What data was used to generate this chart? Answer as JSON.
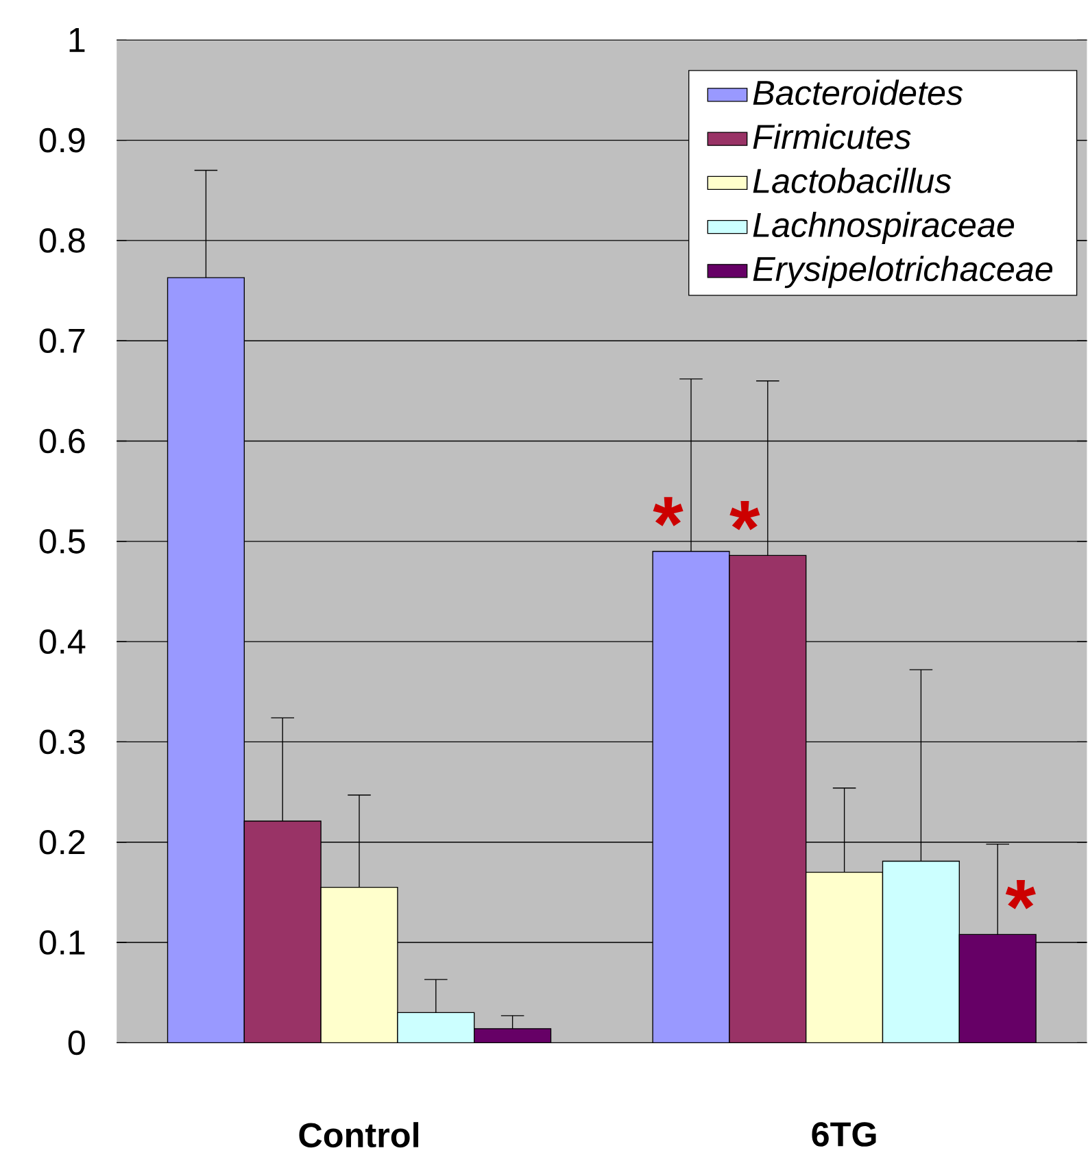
{
  "chart_data": {
    "type": "bar",
    "categories": [
      "Control",
      "6TG"
    ],
    "series": [
      {
        "name": "Bacteroidetes",
        "color": "#9999ff",
        "values": [
          0.763,
          0.49
        ],
        "errors": [
          [
            0.763,
            0.87
          ],
          [
            0.49,
            0.662
          ]
        ]
      },
      {
        "name": "Firmicutes",
        "color": "#993366",
        "values": [
          0.221,
          0.486
        ],
        "errors": [
          [
            0.221,
            0.324
          ],
          [
            0.486,
            0.66
          ]
        ]
      },
      {
        "name": "Lactobacillus",
        "color": "#ffffcc",
        "values": [
          0.155,
          0.17
        ],
        "errors": [
          [
            0.155,
            0.247
          ],
          [
            0.17,
            0.254
          ]
        ]
      },
      {
        "name": "Lachnospiraceae",
        "color": "#ccffff",
        "values": [
          0.03,
          0.181
        ],
        "errors": [
          [
            0.03,
            0.063
          ],
          [
            0.181,
            0.372
          ]
        ]
      },
      {
        "name": "Erysipelotrichaceae",
        "color": "#660066",
        "values": [
          0.014,
          0.108
        ],
        "errors": [
          [
            0.014,
            0.027
          ],
          [
            0.108,
            0.198
          ]
        ]
      }
    ],
    "ylim": [
      0,
      1
    ],
    "yticks": [
      0,
      0.1,
      0.2,
      0.3,
      0.4,
      0.5,
      0.6,
      0.7,
      0.8,
      0.9,
      1
    ],
    "grid": "y",
    "legend": "top right",
    "annotations": [
      "*",
      "*",
      "*"
    ]
  }
}
